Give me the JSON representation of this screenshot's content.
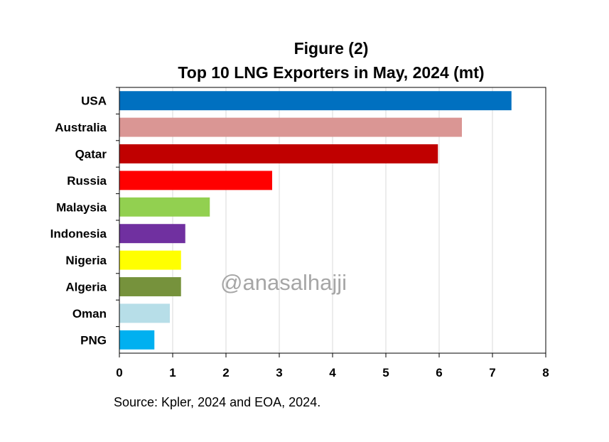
{
  "chart_data": {
    "type": "bar",
    "orientation": "horizontal",
    "title_line1": "Figure (2)",
    "title_line2": "Top 10 LNG Exporters in May, 2024 (mt)",
    "categories": [
      "USA",
      "Australia",
      "Qatar",
      "Russia",
      "Malaysia",
      "Indonesia",
      "Nigeria",
      "Algeria",
      "Oman",
      "PNG"
    ],
    "values": [
      7.35,
      6.42,
      5.97,
      2.86,
      1.69,
      1.23,
      1.15,
      1.15,
      0.94,
      0.65
    ],
    "colors": [
      "#0070C0",
      "#DA9694",
      "#C00000",
      "#FF0000",
      "#92D050",
      "#7030A0",
      "#FFFF00",
      "#76923C",
      "#B7DEE8",
      "#00B0F0"
    ],
    "xlim": [
      0,
      8
    ],
    "xticks": [
      "0",
      "1",
      "2",
      "3",
      "4",
      "5",
      "6",
      "7",
      "8"
    ],
    "grid": true,
    "xlabel": "",
    "ylabel": "",
    "watermark": "@anasalhajji",
    "source": "Source: Kpler, 2024 and EOA, 2024."
  }
}
